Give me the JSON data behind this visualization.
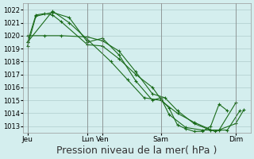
{
  "background_color": "#d4eeee",
  "grid_color": "#b0cccc",
  "line_color": "#1a6b1a",
  "xlabel": "Pression niveau de la mer( hPa )",
  "xlabel_fontsize": 9,
  "ylim": [
    1012.5,
    1022.5
  ],
  "yticks": [
    1013,
    1014,
    1015,
    1016,
    1017,
    1018,
    1019,
    1020,
    1021,
    1022
  ],
  "xtick_labels": [
    "Jeu",
    "",
    "Lun",
    "Ven",
    "",
    "Sam",
    "",
    "Dim"
  ],
  "xtick_positions": [
    0,
    35,
    72,
    90,
    130,
    160,
    210,
    250
  ],
  "series": [
    {
      "x": [
        0,
        10,
        20,
        30,
        40,
        72,
        90,
        110,
        130,
        150,
        160,
        170,
        180,
        190,
        200,
        210,
        220,
        230,
        240,
        250,
        260
      ],
      "y": [
        1019.5,
        1021.6,
        1021.7,
        1021.6,
        1021.1,
        1019.3,
        1019.2,
        1018.2,
        1017.0,
        1016.0,
        1015.1,
        1014.4,
        1013.1,
        1012.8,
        1012.6,
        1012.6,
        1013.0,
        1014.7,
        1014.2,
        null,
        null
      ]
    },
    {
      "x": [
        0,
        10,
        30,
        50,
        72,
        90,
        110,
        130,
        150,
        160,
        170,
        190,
        210,
        230,
        250,
        260
      ],
      "y": [
        1019.2,
        1021.5,
        1021.8,
        1021.4,
        1019.5,
        1019.8,
        1018.5,
        1016.5,
        1015.0,
        1015.2,
        1013.9,
        1012.9,
        1012.7,
        1012.7,
        1014.8,
        null
      ]
    },
    {
      "x": [
        0,
        20,
        40,
        72,
        90,
        110,
        130,
        150,
        165,
        180,
        200,
        220,
        240,
        255
      ],
      "y": [
        1020.0,
        1020.0,
        1020.0,
        1019.9,
        1019.6,
        1018.8,
        1017.2,
        1015.5,
        1015.2,
        1014.2,
        1013.2,
        1012.7,
        1012.7,
        1014.2
      ]
    },
    {
      "x": [
        0,
        30,
        50,
        72,
        100,
        120,
        140,
        160,
        180,
        200,
        225,
        250,
        260
      ],
      "y": [
        1019.5,
        1021.9,
        1021.0,
        1019.7,
        1018.0,
        1016.6,
        1015.2,
        1015.0,
        1014.0,
        1013.3,
        1012.6,
        1013.2,
        1014.3
      ]
    }
  ],
  "figsize": [
    3.2,
    2.0
  ],
  "dpi": 100
}
